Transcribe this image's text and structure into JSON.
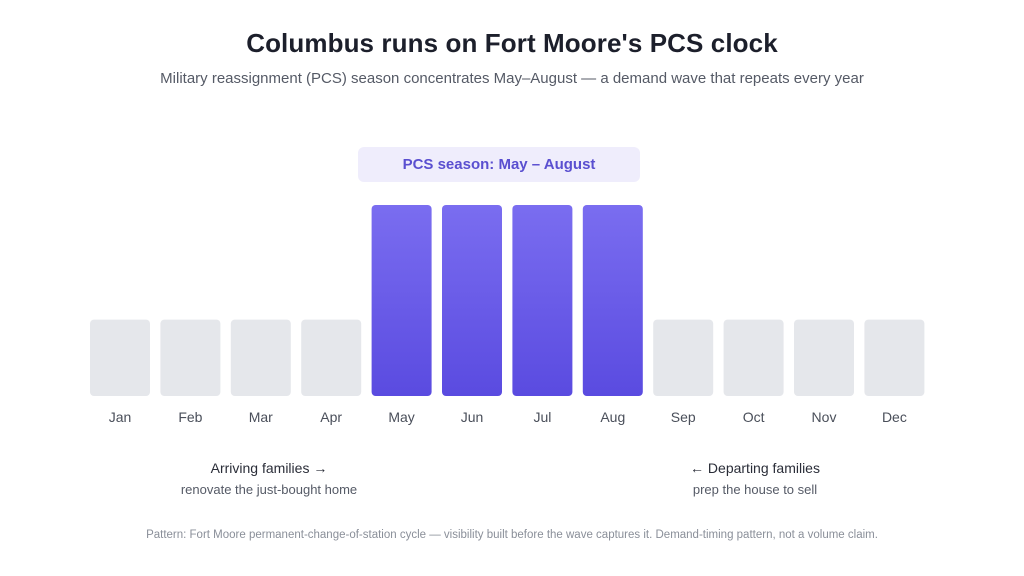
{
  "title": "Columbus runs on Fort Moore's PCS clock",
  "subtitle": "Military reassignment (PCS) season concentrates May–August — a demand wave that repeats every year",
  "season_label": "PCS season: May – August",
  "notes": {
    "arriving": {
      "head": "Arriving families →",
      "sub": "renovate the just-bought home"
    },
    "departing": {
      "head": "← Departing families",
      "sub": "prep the house to sell"
    }
  },
  "footer": "Pattern: Fort Moore permanent-change-of-station cycle — visibility built before the wave captures it. Demand-timing pattern, not a volume claim.",
  "colors": {
    "season_bar_top": "#7a6df0",
    "season_bar_bottom": "#5a4be0",
    "off_season_bar": "#e5e7eb",
    "pill_bg": "#efedfc",
    "pill_text": "#5a4fd0"
  },
  "chart_data": {
    "type": "bar",
    "categories": [
      "Jan",
      "Feb",
      "Mar",
      "Apr",
      "May",
      "Jun",
      "Jul",
      "Aug",
      "Sep",
      "Oct",
      "Nov",
      "Dec"
    ],
    "values": [
      1,
      1,
      1,
      1,
      2.5,
      2.5,
      2.5,
      2.5,
      1,
      1,
      1,
      1
    ],
    "highlighted": [
      "May",
      "Jun",
      "Jul",
      "Aug"
    ],
    "ylim": [
      0,
      2.5
    ],
    "grid": false,
    "legend": "none"
  }
}
